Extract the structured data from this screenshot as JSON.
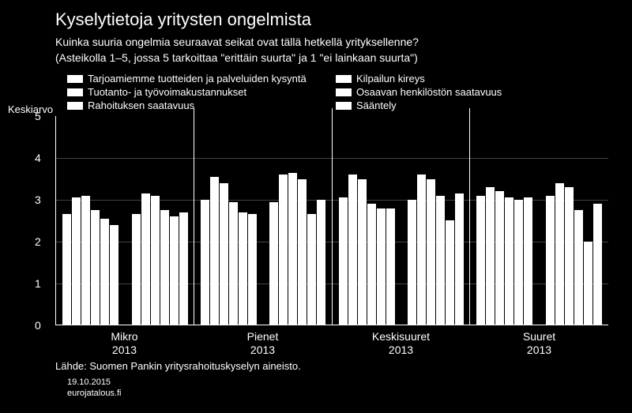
{
  "title": "Kyselytietoja yritysten ongelmista",
  "subtitle1": "Kuinka suuria ongelmia seuraavat seikat ovat tällä hetkellä yrityksellenne?",
  "subtitle2": "(Asteikolla 1–5, jossa 5 tarkoittaa \"erittäin suurta\" ja 1 \"ei lainkaan suurta\")",
  "legend": {
    "items": [
      "Tarjoamiemme tuotteiden ja palveluiden kysyntä",
      "Kilpailun kireys",
      "Tuotanto- ja työvoimakustannukset",
      "Osaavan henkilöstön saatavuus",
      "Rahoituksen saatavuus",
      "Sääntely"
    ]
  },
  "y_axis_label": "Keskiarvo",
  "y_min": 0,
  "y_max": 5,
  "y_step": 1,
  "bar_color": "#ffffff",
  "background_color": "#000000",
  "text_color": "#ffffff",
  "grid_color": "#444444",
  "groups": [
    {
      "label": "Mikro",
      "year": "2013",
      "clusters": [
        [
          2.65,
          3.05,
          3.1,
          2.75,
          2.55,
          2.4
        ],
        [
          2.65,
          3.15,
          3.1,
          2.75,
          2.6,
          2.7
        ]
      ]
    },
    {
      "label": "Pienet",
      "year": "2013",
      "clusters": [
        [
          3.0,
          3.55,
          3.4,
          2.95,
          2.7,
          2.65
        ],
        [
          2.95,
          3.6,
          3.65,
          3.5,
          2.65,
          3.0
        ]
      ]
    },
    {
      "label": "Keskisuuret",
      "year": "2013",
      "clusters": [
        [
          3.05,
          3.6,
          3.5,
          2.9,
          2.8,
          2.8
        ],
        [
          3.0,
          3.6,
          3.5,
          3.1,
          2.5,
          3.15
        ]
      ]
    },
    {
      "label": "Suuret",
      "year": "2013",
      "clusters": [
        [
          3.1,
          3.3,
          3.2,
          3.05,
          3.0,
          3.05
        ],
        [
          3.1,
          3.4,
          3.3,
          2.75,
          2.0,
          2.9
        ]
      ]
    }
  ],
  "source": "Lähde: Suomen Pankin yritysrahoituskyselyn aineisto.",
  "date": "19.10.2015",
  "site": "eurojatalous.fi"
}
